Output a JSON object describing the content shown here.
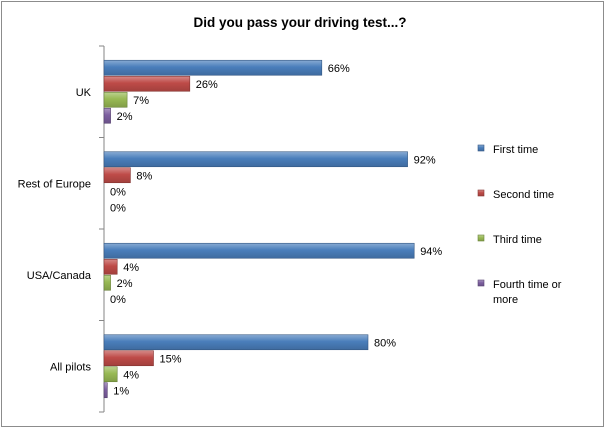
{
  "chart_data": {
    "type": "bar",
    "orientation": "horizontal",
    "title": "Did you pass your driving test...?",
    "categories": [
      "UK",
      "Rest of Europe",
      "USA/Canada",
      "All pilots"
    ],
    "series": [
      {
        "name": "First time",
        "color": "#4a7ebb",
        "values": [
          66,
          92,
          94,
          80
        ]
      },
      {
        "name": "Second time",
        "color": "#be4b48",
        "values": [
          26,
          8,
          4,
          15
        ]
      },
      {
        "name": "Third time",
        "color": "#98b954",
        "values": [
          7,
          0,
          2,
          4
        ]
      },
      {
        "name": "Fourth time or more",
        "color": "#7d5fa0",
        "values": [
          2,
          0,
          0,
          1
        ]
      }
    ],
    "value_suffix": "%",
    "xlim": [
      0,
      100
    ],
    "grid": false,
    "legend_position": "right"
  }
}
